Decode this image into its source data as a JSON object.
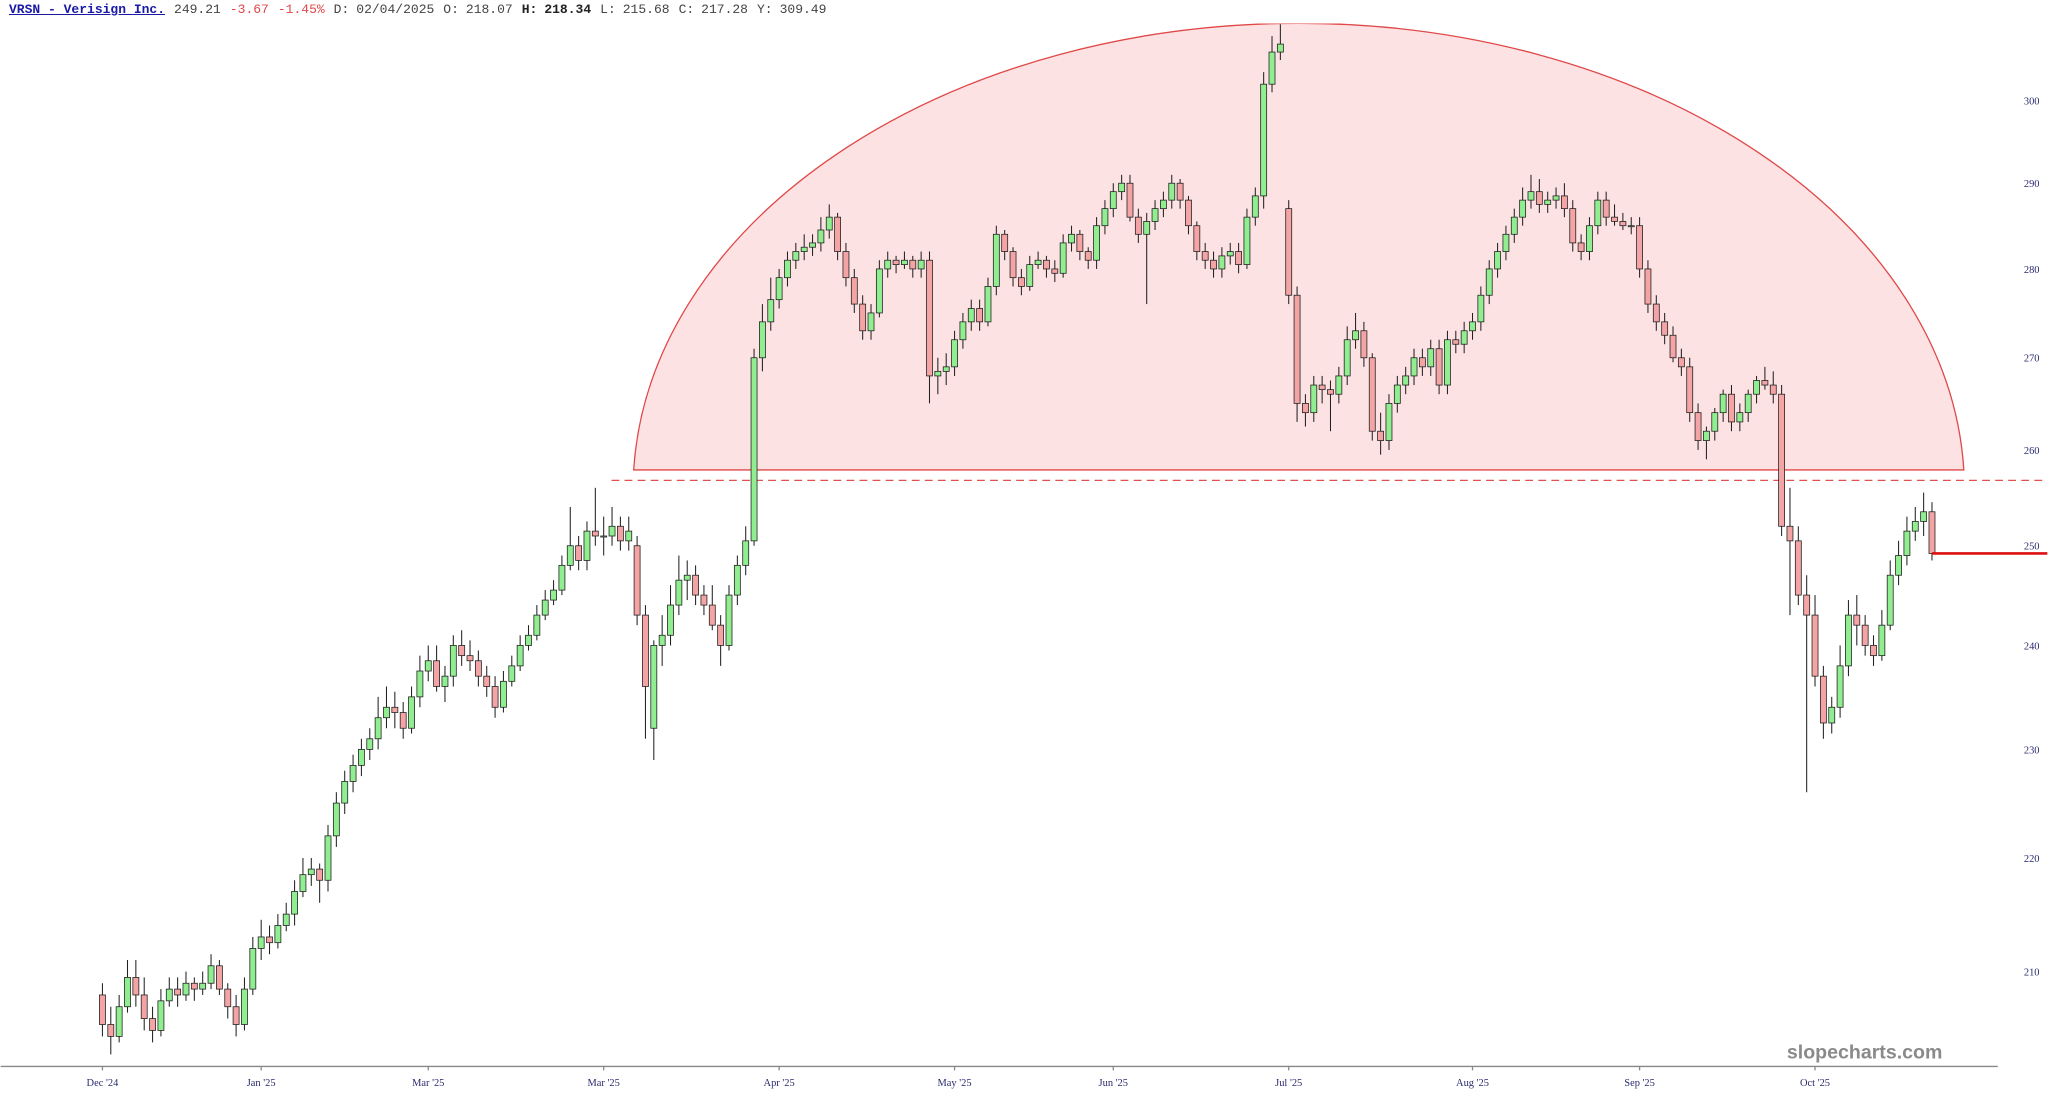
{
  "header": {
    "symbol": "VRSN - Verisign Inc.",
    "change": -3.67,
    "change_percent": "-1.45%",
    "readout": [
      [
        "D:",
        "02/04/2025"
      ],
      [
        "O:",
        218.07
      ],
      [
        "H:",
        218.34
      ],
      [
        "L:",
        215.68
      ],
      [
        "C:",
        217.28
      ],
      [
        "Y:",
        309.49
      ]
    ],
    "watermark": "slopecharts.com"
  },
  "chart_data": {
    "type": "candlestick",
    "last_price": 249.21,
    "log_scale": true,
    "grid": false,
    "up_color": "#90ee90",
    "down_color": "#f4a4a4",
    "last_price_color": "#dd1111",
    "ylim": [
      202,
      309.6
    ],
    "yticks": [
      210,
      220,
      230,
      240,
      250,
      260,
      270,
      280,
      290,
      300
    ],
    "xticks": [
      {
        "value": 0,
        "label": "Dec '24"
      },
      {
        "value": 19,
        "label": "Jan '25"
      },
      {
        "value": 39,
        "label": "Mar '25"
      },
      {
        "value": 60,
        "label": "Mar '25"
      },
      {
        "value": 81,
        "label": "Apr '25"
      },
      {
        "value": 102,
        "label": "May '25"
      },
      {
        "value": 121,
        "label": "Jun '25"
      },
      {
        "value": 142,
        "label": "Jul '25"
      },
      {
        "value": 164,
        "label": "Aug '25"
      },
      {
        "value": 184,
        "label": "Sep '25"
      },
      {
        "value": 205,
        "label": "Oct '25"
      }
    ],
    "open": [
      208,
      205.5,
      204.5,
      207,
      209.5,
      208,
      206,
      205,
      207.5,
      208.5,
      208,
      209,
      208.5,
      209,
      210.5,
      208.5,
      207,
      205.5,
      208.5,
      212,
      213,
      212.5,
      214,
      215,
      217,
      218.5,
      219,
      218,
      222,
      225,
      227,
      228.5,
      230,
      231,
      233,
      234,
      233.5,
      232,
      235,
      237.5,
      238.5,
      236,
      237,
      240,
      239,
      238.5,
      237,
      236,
      234,
      236.5,
      238,
      240,
      241,
      243,
      244.5,
      245.5,
      248,
      250,
      248.5,
      251.5,
      251,
      251,
      252,
      250.5,
      250,
      243,
      232,
      240,
      241,
      244,
      246.5,
      247,
      245,
      244,
      242,
      240,
      245,
      248,
      250.5,
      270,
      274,
      276.5,
      279,
      281,
      282,
      282.5,
      283,
      284.5,
      286,
      282,
      279,
      276,
      273,
      275,
      280,
      281,
      280.5,
      281,
      280,
      281,
      268,
      268.5,
      269,
      272,
      274,
      275.5,
      274,
      278,
      284,
      282,
      279,
      278,
      280.5,
      281,
      280,
      279.5,
      283,
      284,
      282,
      281,
      285,
      287,
      289,
      290,
      286,
      284,
      285.5,
      287,
      288,
      290,
      288,
      285,
      282,
      281,
      280,
      281.5,
      282,
      280.5,
      286,
      288.5,
      302,
      306,
      287,
      277,
      265,
      264,
      267,
      266.5,
      266,
      268,
      272,
      273,
      270,
      262,
      261,
      265,
      267,
      268,
      270,
      269,
      271,
      267,
      272,
      271.5,
      273,
      274,
      277,
      280,
      282,
      284,
      286,
      288,
      289,
      287.5,
      288,
      288.5,
      287,
      283,
      282,
      285,
      288,
      286,
      285.5,
      285,
      285,
      280,
      276,
      274,
      272.5,
      270,
      269,
      264,
      261,
      262,
      264,
      266,
      263,
      264,
      266,
      267.5,
      267,
      266,
      252,
      250.5,
      245,
      243,
      237,
      232.5,
      234,
      238,
      243,
      242,
      240,
      239,
      242,
      247,
      249,
      251.5,
      252.5,
      253.5
    ],
    "high": [
      209,
      207,
      208,
      211,
      211,
      209.5,
      207,
      208.5,
      209.5,
      209.5,
      210,
      209.5,
      210,
      211.5,
      211,
      209,
      208,
      209.5,
      213,
      214.5,
      214,
      215,
      216,
      218,
      220,
      220,
      219.5,
      223,
      226,
      228,
      229.5,
      231,
      232,
      235,
      236,
      235.5,
      234.5,
      236,
      239,
      240,
      240,
      238,
      241,
      241.5,
      240.5,
      239.5,
      238,
      237,
      237.5,
      239,
      241,
      242,
      244,
      245.5,
      246.5,
      249,
      254,
      251,
      252.5,
      256,
      253,
      254,
      253,
      253,
      251,
      244,
      240.5,
      243,
      246,
      249,
      248.5,
      248,
      246,
      246,
      243,
      246,
      249,
      252,
      271,
      276,
      279,
      280,
      282,
      283,
      284,
      284,
      286,
      287.5,
      286.5,
      283,
      280,
      277,
      276,
      281,
      282,
      281.5,
      282,
      281.5,
      282,
      282,
      270,
      270.5,
      273,
      275,
      276.5,
      276.5,
      279,
      285,
      284.5,
      282.5,
      280,
      281.5,
      282,
      281.5,
      281,
      284,
      285,
      284.5,
      282.5,
      286,
      288,
      290,
      291,
      291,
      287,
      286.5,
      288,
      289,
      291,
      290.5,
      288.5,
      285.5,
      283,
      282,
      282.5,
      283,
      283,
      287,
      289.5,
      303.5,
      308,
      309.5,
      288,
      278,
      266,
      268,
      268,
      267.5,
      269,
      273.5,
      275,
      274,
      270.5,
      264,
      266,
      268,
      269,
      271,
      271,
      272,
      272,
      273,
      273,
      274,
      275,
      278,
      281,
      283,
      285,
      287,
      289.5,
      291,
      290.5,
      289,
      289.5,
      290,
      288,
      284,
      286,
      289,
      289,
      287.5,
      286.5,
      286,
      286,
      281,
      277,
      275,
      273.5,
      271,
      270,
      265,
      262.5,
      264.5,
      266.5,
      267,
      265,
      266.5,
      268,
      269,
      268.5,
      267,
      256,
      252,
      247,
      245,
      238,
      235,
      240,
      244.5,
      245,
      243,
      241,
      243.5,
      248.5,
      250.5,
      253,
      254,
      255.5,
      254.5
    ],
    "low": [
      204.5,
      203,
      204,
      206.5,
      207,
      205,
      204,
      204.5,
      207,
      207,
      207.5,
      207.5,
      208,
      208.5,
      208,
      206,
      204.5,
      205,
      208,
      211,
      211.5,
      212,
      213.5,
      214,
      216.5,
      217.5,
      216,
      217,
      221,
      224,
      226,
      227.5,
      229,
      230,
      232,
      232,
      231,
      231.5,
      234,
      236.5,
      235.5,
      234.5,
      236,
      238,
      237.5,
      236,
      235,
      233,
      233.5,
      236,
      237.5,
      239.5,
      240.5,
      242.5,
      244,
      245,
      247.5,
      247.5,
      247.5,
      250,
      249,
      250,
      249.5,
      249.5,
      242,
      231,
      229,
      238,
      240,
      243,
      244.5,
      244,
      243,
      241.5,
      238,
      239.5,
      244,
      247,
      250,
      268.5,
      273,
      275.5,
      278,
      280,
      281,
      281.5,
      282,
      283.5,
      281,
      278,
      275,
      272,
      272,
      274.5,
      279,
      279.5,
      280,
      279,
      279,
      265,
      266,
      267,
      268,
      271,
      273,
      273,
      273.5,
      277,
      281,
      278,
      277,
      277.5,
      280,
      279,
      278.5,
      279,
      282,
      281,
      280,
      280,
      284,
      286,
      288,
      285.5,
      283,
      276,
      284.5,
      286,
      287,
      287,
      284,
      281,
      280,
      279,
      279,
      280.5,
      279.5,
      280,
      285,
      287,
      301,
      305,
      276,
      263,
      262.5,
      263,
      265,
      262,
      265,
      267,
      271,
      269,
      261,
      259.5,
      260,
      264,
      266,
      267,
      268,
      268,
      266,
      266,
      270.5,
      270.5,
      272,
      273,
      276,
      279,
      281,
      283,
      285,
      287,
      286.5,
      286.5,
      287,
      286,
      282,
      281,
      281,
      284,
      285,
      285,
      284.5,
      284,
      279,
      275,
      273,
      271.5,
      269.5,
      268,
      263,
      260,
      259,
      261,
      263,
      262,
      262,
      263,
      265,
      266.5,
      265,
      251,
      243,
      244,
      226,
      236,
      231,
      231.5,
      233,
      237,
      240,
      239,
      238,
      238.5,
      241.5,
      246,
      248,
      250.5,
      251,
      248.5
    ],
    "close": [
      205.5,
      204.5,
      207,
      209.5,
      208,
      206,
      205,
      207.5,
      208.5,
      208,
      209,
      208.5,
      209,
      210.5,
      208.5,
      207,
      205.5,
      208.5,
      212,
      213,
      212.5,
      214,
      215,
      217,
      218.5,
      219,
      218,
      222,
      225,
      227,
      228.5,
      230,
      231,
      233,
      234,
      233.5,
      232,
      235,
      237.5,
      238.5,
      236,
      237,
      240,
      239,
      238.5,
      237,
      236,
      234,
      236.5,
      238,
      240,
      241,
      243,
      244.5,
      245.5,
      248,
      250,
      248.5,
      251.5,
      251,
      251,
      252,
      250.5,
      251.5,
      243,
      236,
      240,
      241,
      244,
      246.5,
      247,
      245,
      244,
      242,
      240,
      245,
      248,
      250.5,
      270,
      274,
      276.5,
      279,
      281,
      282,
      282.5,
      283,
      284.5,
      286,
      282,
      279,
      276,
      273,
      275,
      280,
      281,
      280.5,
      281,
      280,
      281,
      268,
      268.5,
      269,
      272,
      274,
      275.5,
      274,
      278,
      284,
      282,
      279,
      278,
      280.5,
      281,
      280,
      279.5,
      283,
      284,
      282,
      281,
      285,
      287,
      289,
      290,
      286,
      284,
      285.5,
      287,
      288,
      290,
      288,
      285,
      282,
      281,
      280,
      281.5,
      282,
      280.5,
      286,
      288.5,
      302,
      306,
      307,
      277,
      265,
      264,
      267,
      266.5,
      266,
      268,
      272,
      273,
      270,
      262,
      261,
      265,
      267,
      268,
      270,
      269,
      271,
      267,
      272,
      271.5,
      273,
      274,
      277,
      280,
      282,
      284,
      286,
      288,
      289,
      287.5,
      288,
      288.5,
      287,
      283,
      282,
      285,
      288,
      286,
      285.5,
      285,
      285,
      280,
      276,
      274,
      272.5,
      270,
      269,
      264,
      261,
      262,
      264,
      266,
      263,
      264,
      266,
      267.5,
      267,
      266,
      252,
      250.5,
      245,
      243,
      237,
      232.5,
      234,
      238,
      243,
      242,
      240,
      239,
      242,
      247,
      249,
      251.5,
      252.5,
      253.5,
      249.21
    ]
  }
}
